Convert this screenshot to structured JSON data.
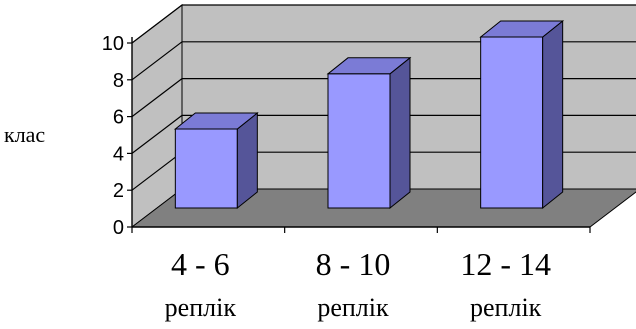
{
  "chart_data": {
    "type": "bar",
    "categories": [
      "4 - 6",
      "8 - 10",
      "12 - 14"
    ],
    "category_sublabels": [
      "реплік",
      "реплік",
      "реплік"
    ],
    "values": [
      5,
      8,
      10
    ],
    "ylabel": "клас",
    "xlabel": "",
    "ylim": [
      0,
      10
    ],
    "yticks": [
      "0",
      "2",
      "4",
      "6",
      "8",
      "10"
    ],
    "grid": true,
    "three_d": true,
    "colors": {
      "bar_front": "#9999ff",
      "bar_side": "#555599",
      "bar_top": "#7b7bd6",
      "wall": "#c0c0c0",
      "floor": "#808080",
      "axis": "#000000"
    }
  }
}
